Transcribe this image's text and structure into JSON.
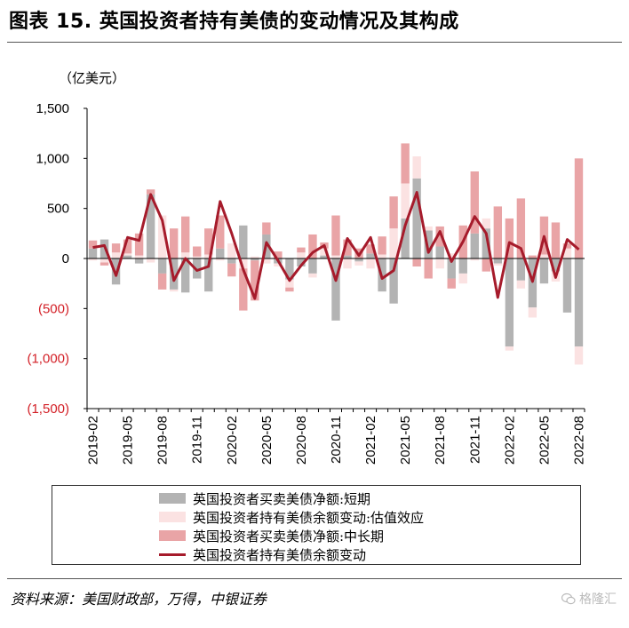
{
  "header": {
    "title": "图表 15. 英国投资者持有美债的变动情况及其构成",
    "unit": "（亿美元）"
  },
  "footer": {
    "source": "资料来源：美国财政部，万得，中银证券",
    "watermark": "格隆汇"
  },
  "colors": {
    "short_term": "#b3b3b3",
    "valuation": "#fbe2e2",
    "long_term": "#e9a4a6",
    "total_line": "#a61b2b",
    "negative_tick": "#d31f26"
  },
  "chart_data": {
    "type": "bar+line",
    "ylim": [
      -1500,
      1500
    ],
    "yticks": [
      1500,
      1000,
      500,
      0,
      -500,
      -1000,
      -1500
    ],
    "ytick_labels": [
      "1,500",
      "1,000",
      "500",
      "0",
      "(500)",
      "(1,000)",
      "(1,500)"
    ],
    "x_tick_labels": [
      "2019-02",
      "2019-05",
      "2019-08",
      "2019-11",
      "2020-02",
      "2020-05",
      "2020-08",
      "2020-11",
      "2021-02",
      "2021-05",
      "2021-08",
      "2021-11",
      "2022-02",
      "2022-05",
      "2022-08"
    ],
    "x_tick_every": 3,
    "categories": [
      "2019-02",
      "2019-03",
      "2019-04",
      "2019-05",
      "2019-06",
      "2019-07",
      "2019-08",
      "2019-09",
      "2019-10",
      "2019-11",
      "2019-12",
      "2020-01",
      "2020-02",
      "2020-03",
      "2020-04",
      "2020-05",
      "2020-06",
      "2020-07",
      "2020-08",
      "2020-09",
      "2020-10",
      "2020-11",
      "2020-12",
      "2021-01",
      "2021-02",
      "2021-03",
      "2021-04",
      "2021-05",
      "2021-06",
      "2021-07",
      "2021-08",
      "2021-09",
      "2021-10",
      "2021-11",
      "2021-12",
      "2022-01",
      "2022-02",
      "2022-03",
      "2022-04",
      "2022-05",
      "2022-06",
      "2022-07",
      "2022-08"
    ],
    "legend_position": "bottom",
    "series": [
      {
        "name": "英国投资者买卖美债净额:短期",
        "kind": "bar",
        "values": [
          100,
          190,
          -260,
          30,
          -50,
          640,
          -150,
          -310,
          -340,
          -200,
          -330,
          100,
          -50,
          330,
          -20,
          240,
          -50,
          -210,
          -80,
          -150,
          30,
          -620,
          30,
          -30,
          50,
          -330,
          -450,
          400,
          800,
          280,
          120,
          -200,
          -150,
          250,
          300,
          -50,
          -880,
          -220,
          -490,
          -250,
          -130,
          -540,
          -880
        ]
      },
      {
        "name": "英国投资者持有美债余额变动:估值效应",
        "kind": "bar",
        "values": [
          -20,
          -40,
          60,
          20,
          30,
          -40,
          430,
          -20,
          60,
          20,
          40,
          -20,
          150,
          -100,
          20,
          -50,
          -30,
          -80,
          60,
          -40,
          70,
          30,
          -100,
          -40,
          -100,
          40,
          300,
          350,
          220,
          40,
          -100,
          50,
          -100,
          -20,
          100,
          -20,
          -40,
          -80,
          -100,
          40,
          -100,
          100,
          -180
        ]
      },
      {
        "name": "英国投资者买卖美债净额:中长期",
        "kind": "bar",
        "values": [
          80,
          -30,
          90,
          140,
          220,
          50,
          -160,
          300,
          360,
          100,
          260,
          330,
          -130,
          -420,
          -400,
          120,
          70,
          -40,
          50,
          240,
          60,
          400,
          160,
          100,
          90,
          180,
          320,
          400,
          -80,
          -200,
          200,
          -100,
          330,
          620,
          -130,
          520,
          400,
          600,
          30,
          380,
          360,
          50,
          1000
        ]
      },
      {
        "name": "英国投资者持有美债余额变动",
        "kind": "line",
        "values": [
          110,
          130,
          -170,
          210,
          180,
          640,
          380,
          -220,
          0,
          -120,
          -80,
          570,
          250,
          -110,
          -400,
          160,
          -20,
          -220,
          -70,
          60,
          130,
          -220,
          200,
          30,
          210,
          -200,
          -120,
          330,
          660,
          60,
          270,
          -30,
          170,
          420,
          250,
          -390,
          160,
          100,
          -230,
          220,
          -190,
          190,
          90
        ]
      }
    ]
  }
}
